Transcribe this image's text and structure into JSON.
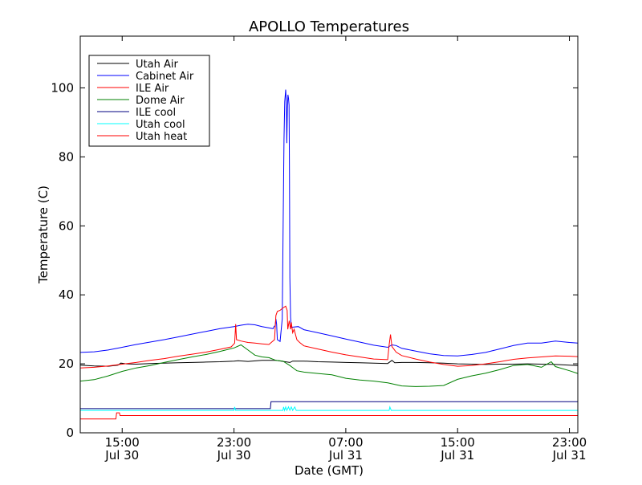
{
  "chart_data": {
    "type": "line",
    "title": "APOLLO Temperatures",
    "xlabel": "Date (GMT)",
    "ylabel": "Temperature (C)",
    "xlim": [
      12.0,
      47.6
    ],
    "ylim": [
      0,
      115
    ],
    "x_unit": "hours since 2012-07-30 00:00 GMT",
    "x_ticks": [
      {
        "value": 15,
        "line1": "15:00",
        "line2": "Jul 30"
      },
      {
        "value": 23,
        "line1": "23:00",
        "line2": "Jul 30"
      },
      {
        "value": 31,
        "line1": "07:00",
        "line2": "Jul 31"
      },
      {
        "value": 39,
        "line1": "15:00",
        "line2": "Jul 31"
      },
      {
        "value": 47,
        "line1": "23:00",
        "line2": "Jul 31"
      }
    ],
    "y_ticks": [
      0,
      20,
      40,
      60,
      80,
      100
    ],
    "grid": false,
    "legend_position": "top-left",
    "series": [
      {
        "name": "Utah Air",
        "color": "#000000",
        "points": [
          [
            12,
            19.6
          ],
          [
            13,
            19.4
          ],
          [
            14,
            19.3
          ],
          [
            14.7,
            19.6
          ],
          [
            14.9,
            20.2
          ],
          [
            15.3,
            20.0
          ],
          [
            16,
            19.9
          ],
          [
            17,
            20.1
          ],
          [
            18,
            20.2
          ],
          [
            19,
            20.3
          ],
          [
            20,
            20.4
          ],
          [
            21,
            20.5
          ],
          [
            22,
            20.6
          ],
          [
            23,
            20.8
          ],
          [
            23.3,
            20.9
          ],
          [
            24,
            20.7
          ],
          [
            25,
            21.0
          ],
          [
            26,
            21.0
          ],
          [
            27,
            20.4
          ],
          [
            27.2,
            20.8
          ],
          [
            28,
            20.8
          ],
          [
            29,
            20.6
          ],
          [
            30,
            20.5
          ],
          [
            31,
            20.4
          ],
          [
            32,
            20.3
          ],
          [
            33,
            20.2
          ],
          [
            34,
            20.1
          ],
          [
            34.3,
            21.0
          ],
          [
            34.5,
            20.3
          ],
          [
            35,
            20.4
          ],
          [
            36,
            20.4
          ],
          [
            37,
            20.3
          ],
          [
            38,
            20.2
          ],
          [
            39,
            20.0
          ],
          [
            40,
            19.9
          ],
          [
            41,
            19.8
          ],
          [
            42,
            19.9
          ],
          [
            43,
            19.9
          ],
          [
            44,
            20.0
          ],
          [
            45,
            19.9
          ],
          [
            46,
            19.8
          ],
          [
            47,
            19.6
          ],
          [
            47.6,
            19.5
          ]
        ]
      },
      {
        "name": "Cabinet Air",
        "color": "#0000ff",
        "points": [
          [
            12,
            23.3
          ],
          [
            13,
            23.5
          ],
          [
            14,
            24.0
          ],
          [
            15,
            24.8
          ],
          [
            16,
            25.6
          ],
          [
            17,
            26.3
          ],
          [
            18,
            27.0
          ],
          [
            19,
            27.8
          ],
          [
            20,
            28.6
          ],
          [
            21,
            29.4
          ],
          [
            22,
            30.2
          ],
          [
            23,
            30.8
          ],
          [
            23.5,
            31.2
          ],
          [
            24,
            31.5
          ],
          [
            24.5,
            31.3
          ],
          [
            25,
            30.8
          ],
          [
            25.4,
            30.5
          ],
          [
            25.8,
            30.2
          ],
          [
            25.88,
            30.9
          ],
          [
            25.95,
            31.0
          ],
          [
            26.0,
            33.0
          ],
          [
            26.05,
            31.5
          ],
          [
            26.1,
            27.0
          ],
          [
            26.3,
            26.5
          ],
          [
            26.45,
            33.0
          ],
          [
            26.52,
            62.0
          ],
          [
            26.58,
            85.0
          ],
          [
            26.63,
            96.0
          ],
          [
            26.7,
            99.5
          ],
          [
            26.75,
            95.0
          ],
          [
            26.78,
            84.0
          ],
          [
            26.82,
            94.0
          ],
          [
            26.86,
            98.0
          ],
          [
            26.9,
            97.0
          ],
          [
            26.94,
            95.0
          ],
          [
            26.97,
            75.0
          ],
          [
            27.0,
            45.0
          ],
          [
            27.05,
            33.5
          ],
          [
            27.1,
            30.6
          ],
          [
            27.6,
            30.8
          ],
          [
            28,
            29.9
          ],
          [
            29,
            29.0
          ],
          [
            30,
            28.1
          ],
          [
            31,
            27.2
          ],
          [
            32,
            26.3
          ],
          [
            33,
            25.4
          ],
          [
            34,
            24.8
          ],
          [
            34.3,
            25.5
          ],
          [
            34.6,
            25.3
          ],
          [
            35,
            24.5
          ],
          [
            36,
            23.7
          ],
          [
            37,
            22.9
          ],
          [
            38,
            22.4
          ],
          [
            39,
            22.3
          ],
          [
            40,
            22.7
          ],
          [
            41,
            23.3
          ],
          [
            42,
            24.3
          ],
          [
            43,
            25.3
          ],
          [
            44,
            26.0
          ],
          [
            45,
            26.0
          ],
          [
            46,
            26.6
          ],
          [
            47,
            26.2
          ],
          [
            47.6,
            26.0
          ]
        ]
      },
      {
        "name": "ILE Air",
        "color": "#ff0000",
        "points": [
          [
            12,
            18.8
          ],
          [
            13,
            19.0
          ],
          [
            14,
            19.4
          ],
          [
            15,
            19.9
          ],
          [
            16,
            20.4
          ],
          [
            17,
            21.0
          ],
          [
            18,
            21.5
          ],
          [
            19,
            22.2
          ],
          [
            20,
            22.8
          ],
          [
            21,
            23.4
          ],
          [
            22,
            24.2
          ],
          [
            22.8,
            24.9
          ],
          [
            23.05,
            26.0
          ],
          [
            23.12,
            31.5
          ],
          [
            23.18,
            27.0
          ],
          [
            23.5,
            26.6
          ],
          [
            24,
            26.2
          ],
          [
            24.5,
            26.0
          ],
          [
            25,
            25.8
          ],
          [
            25.5,
            25.6
          ],
          [
            25.9,
            27.0
          ],
          [
            26.0,
            34.0
          ],
          [
            26.1,
            35.2
          ],
          [
            26.3,
            35.5
          ],
          [
            26.5,
            36.2
          ],
          [
            26.7,
            36.7
          ],
          [
            26.8,
            35.5
          ],
          [
            26.85,
            30.0
          ],
          [
            26.95,
            32.5
          ],
          [
            27.05,
            30.0
          ],
          [
            27.1,
            32.0
          ],
          [
            27.2,
            29.0
          ],
          [
            27.3,
            30.0
          ],
          [
            27.5,
            27.0
          ],
          [
            27.7,
            26.2
          ],
          [
            28,
            25.2
          ],
          [
            29,
            24.3
          ],
          [
            30,
            23.4
          ],
          [
            31,
            22.6
          ],
          [
            32,
            22.0
          ],
          [
            33,
            21.4
          ],
          [
            34,
            21.2
          ],
          [
            34.1,
            25.5
          ],
          [
            34.2,
            28.5
          ],
          [
            34.3,
            25.0
          ],
          [
            34.6,
            23.4
          ],
          [
            35,
            22.4
          ],
          [
            36,
            21.4
          ],
          [
            37,
            20.5
          ],
          [
            38,
            19.8
          ],
          [
            39,
            19.3
          ],
          [
            40,
            19.5
          ],
          [
            41,
            20.0
          ],
          [
            42,
            20.6
          ],
          [
            43,
            21.3
          ],
          [
            44,
            21.7
          ],
          [
            45,
            22.0
          ],
          [
            46,
            22.3
          ],
          [
            47,
            22.2
          ],
          [
            47.6,
            22.1
          ]
        ]
      },
      {
        "name": "Dome Air",
        "color": "#008000",
        "points": [
          [
            12,
            15.0
          ],
          [
            13,
            15.4
          ],
          [
            14,
            16.5
          ],
          [
            15,
            17.8
          ],
          [
            16,
            18.8
          ],
          [
            17,
            19.5
          ],
          [
            18,
            20.4
          ],
          [
            19,
            21.2
          ],
          [
            20,
            22.0
          ],
          [
            21,
            22.7
          ],
          [
            22,
            23.6
          ],
          [
            23,
            24.6
          ],
          [
            23.5,
            25.5
          ],
          [
            24,
            24.0
          ],
          [
            24.5,
            22.5
          ],
          [
            25,
            22.0
          ],
          [
            25.5,
            21.8
          ],
          [
            26,
            21.0
          ],
          [
            26.5,
            20.8
          ],
          [
            27,
            19.5
          ],
          [
            27.3,
            18.6
          ],
          [
            27.5,
            18.0
          ],
          [
            28,
            17.6
          ],
          [
            29,
            17.2
          ],
          [
            30,
            16.8
          ],
          [
            31,
            15.8
          ],
          [
            32,
            15.3
          ],
          [
            33,
            15.0
          ],
          [
            34,
            14.5
          ],
          [
            35,
            13.6
          ],
          [
            36,
            13.4
          ],
          [
            37,
            13.5
          ],
          [
            38,
            13.7
          ],
          [
            39,
            15.5
          ],
          [
            40,
            16.5
          ],
          [
            41,
            17.3
          ],
          [
            42,
            18.3
          ],
          [
            43,
            19.5
          ],
          [
            44,
            19.8
          ],
          [
            45,
            19.0
          ],
          [
            45.7,
            20.6
          ],
          [
            46,
            19.2
          ],
          [
            47,
            18.0
          ],
          [
            47.6,
            17.2
          ]
        ]
      },
      {
        "name": "ILE cool",
        "color": "#000080",
        "points": [
          [
            12,
            7.0
          ],
          [
            14,
            7.0
          ],
          [
            16,
            7.0
          ],
          [
            18,
            7.0
          ],
          [
            20,
            7.0
          ],
          [
            22,
            7.0
          ],
          [
            24,
            7.0
          ],
          [
            25.6,
            7.0
          ],
          [
            25.65,
            9.0
          ],
          [
            27,
            9.0
          ],
          [
            30,
            9.0
          ],
          [
            33,
            9.0
          ],
          [
            36,
            9.0
          ],
          [
            39,
            9.0
          ],
          [
            42,
            9.0
          ],
          [
            45,
            9.0
          ],
          [
            47.6,
            9.0
          ]
        ]
      },
      {
        "name": "Utah cool",
        "color": "#00ffff",
        "points": [
          [
            12,
            6.5
          ],
          [
            20,
            6.5
          ],
          [
            23.0,
            6.5
          ],
          [
            23.05,
            7.5
          ],
          [
            23.12,
            6.5
          ],
          [
            26.5,
            6.5
          ],
          [
            26.55,
            7.5
          ],
          [
            26.62,
            6.5
          ],
          [
            26.7,
            7.5
          ],
          [
            26.78,
            6.5
          ],
          [
            26.9,
            7.5
          ],
          [
            27.0,
            6.5
          ],
          [
            27.1,
            7.5
          ],
          [
            27.2,
            6.5
          ],
          [
            27.35,
            7.5
          ],
          [
            27.45,
            6.5
          ],
          [
            30,
            6.5
          ],
          [
            34.1,
            6.5
          ],
          [
            34.15,
            7.5
          ],
          [
            34.25,
            6.5
          ],
          [
            40,
            6.5
          ],
          [
            47.6,
            6.5
          ]
        ]
      },
      {
        "name": "Utah heat",
        "color": "#ff0000",
        "points": [
          [
            12,
            4.0
          ],
          [
            14.55,
            4.0
          ],
          [
            14.6,
            5.8
          ],
          [
            14.8,
            5.8
          ],
          [
            14.85,
            5.0
          ],
          [
            20,
            5.0
          ],
          [
            30,
            5.0
          ],
          [
            40,
            5.0
          ],
          [
            47.6,
            5.0
          ]
        ]
      }
    ]
  }
}
